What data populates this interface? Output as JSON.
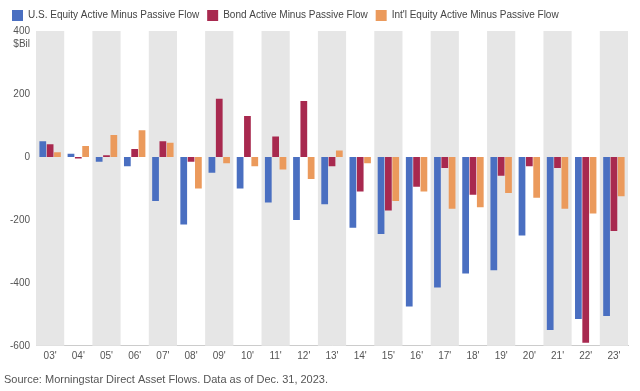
{
  "chart_data": {
    "type": "bar",
    "ylabel": "$Bil",
    "caption": "Source: Morningstar Direct Asset Flows. Data as of Dec. 31, 2023.",
    "categories": [
      "03'",
      "04'",
      "05'",
      "06'",
      "07'",
      "08'",
      "09'",
      "10'",
      "11'",
      "12'",
      "13'",
      "14'",
      "15'",
      "16'",
      "17'",
      "18'",
      "19'",
      "20'",
      "21'",
      "22'",
      "23'"
    ],
    "series": [
      {
        "name": "U.S. Equity Active Minus Passive Flow",
        "color": "#4a6fc1",
        "values": [
          50,
          10,
          -15,
          -30,
          -140,
          -215,
          -50,
          -100,
          -145,
          -200,
          -150,
          -225,
          -245,
          -475,
          -415,
          -370,
          -360,
          -250,
          -550,
          -515,
          -505
        ]
      },
      {
        "name": "Bond Active Minus Passive Flow",
        "color": "#a8294f",
        "values": [
          40,
          -5,
          5,
          25,
          50,
          -15,
          185,
          130,
          65,
          178,
          -30,
          -110,
          -170,
          -95,
          -35,
          -120,
          -60,
          -30,
          -35,
          -590,
          -235
        ]
      },
      {
        "name": "Int'l Equity Active Minus Passive Flow",
        "color": "#eb9a5c",
        "values": [
          15,
          35,
          70,
          85,
          45,
          -100,
          -20,
          -30,
          -40,
          -70,
          20,
          -20,
          -140,
          -110,
          -165,
          -160,
          -115,
          -130,
          -165,
          -180,
          -125
        ]
      }
    ],
    "ylim": [
      -600,
      400
    ],
    "yticks": [
      -600,
      -400,
      -200,
      0,
      200,
      400
    ],
    "grid": false,
    "legend": "top-left"
  }
}
